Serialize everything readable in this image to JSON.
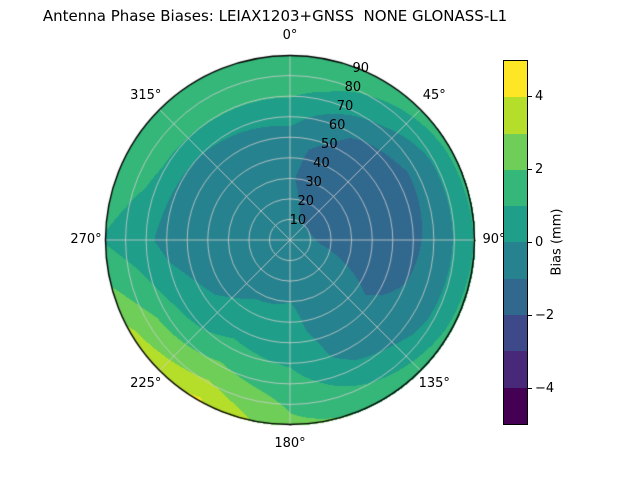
{
  "title": "Antenna Phase Biases: LEIAX1203+GNSS  NONE GLONASS-L1",
  "chart_data": {
    "type": "heatmap",
    "projection": "polar",
    "title": "Antenna Phase Biases: LEIAX1203+GNSS  NONE GLONASS-L1",
    "theta_direction": "clockwise",
    "theta_zero": "top",
    "r_axis": {
      "min": 0,
      "max": 90
    },
    "levels": [
      -5,
      -4,
      -3,
      -2,
      -1,
      0,
      1,
      2,
      3,
      4,
      5
    ],
    "band_colors": [
      "#440154",
      "#482878",
      "#3e4989",
      "#31688e",
      "#26828e",
      "#1f9e89",
      "#35b779",
      "#6ece58",
      "#b5de2b",
      "#fde725"
    ],
    "azimuth_deg": [
      0,
      30,
      60,
      90,
      120,
      150,
      180,
      210,
      240,
      270,
      300,
      330
    ],
    "zenith_deg": [
      0,
      15,
      30,
      45,
      60,
      75,
      90
    ],
    "bias_mm": [
      [
        -0.5,
        -0.5,
        -0.5,
        -0.5,
        -0.5,
        -0.5,
        -0.5,
        -0.5,
        -0.5,
        -0.5,
        -0.5,
        -0.5
      ],
      [
        -0.7,
        -1.2,
        -1.3,
        -1.1,
        -0.7,
        -0.4,
        -0.3,
        -0.3,
        -0.4,
        -0.6,
        -0.7,
        -0.7
      ],
      [
        -0.9,
        -1.6,
        -1.7,
        -1.4,
        -0.9,
        -0.4,
        0.0,
        -0.1,
        -0.4,
        -0.7,
        -0.9,
        -0.9
      ],
      [
        -0.7,
        -1.5,
        -1.8,
        -1.5,
        -1.1,
        -0.6,
        0.3,
        0.4,
        -0.1,
        -0.6,
        -0.8,
        -0.8
      ],
      [
        0.3,
        -0.9,
        -1.4,
        -1.2,
        -0.9,
        -0.5,
        0.9,
        1.3,
        0.6,
        -0.3,
        -0.1,
        0.1
      ],
      [
        1.4,
        0.6,
        -0.4,
        -0.4,
        -0.2,
        0.6,
        1.7,
        2.6,
        2.0,
        0.4,
        1.3,
        1.5
      ],
      [
        1.8,
        1.7,
        1.3,
        1.1,
        1.3,
        1.9,
        2.2,
        4.2,
        3.2,
        0.9,
        2.0,
        1.9
      ]
    ],
    "theta_ticks": [
      {
        "angle_deg": 0,
        "label": "0°"
      },
      {
        "angle_deg": 45,
        "label": "45°"
      },
      {
        "angle_deg": 90,
        "label": "90°"
      },
      {
        "angle_deg": 135,
        "label": "135°"
      },
      {
        "angle_deg": 180,
        "label": "180°"
      },
      {
        "angle_deg": 225,
        "label": "225°"
      },
      {
        "angle_deg": 270,
        "label": "270°"
      },
      {
        "angle_deg": 315,
        "label": "315°"
      }
    ],
    "r_ticks": [
      {
        "value": 10,
        "label": "10"
      },
      {
        "value": 20,
        "label": "20"
      },
      {
        "value": 30,
        "label": "30"
      },
      {
        "value": 40,
        "label": "40"
      },
      {
        "value": 50,
        "label": "50"
      },
      {
        "value": 60,
        "label": "60"
      },
      {
        "value": 70,
        "label": "70"
      },
      {
        "value": 80,
        "label": "80"
      },
      {
        "value": 90,
        "label": "90"
      }
    ],
    "r_label_angle_deg": 22.5,
    "grid_color": "#cccccc",
    "outline_color": "#000000",
    "colorbar": {
      "label": "Bias (mm)",
      "min": -5,
      "max": 5,
      "ticks": [
        {
          "value": -4,
          "label": "−4"
        },
        {
          "value": -2,
          "label": "−2"
        },
        {
          "value": 0,
          "label": "0"
        },
        {
          "value": 2,
          "label": "2"
        },
        {
          "value": 4,
          "label": "4"
        }
      ]
    }
  }
}
